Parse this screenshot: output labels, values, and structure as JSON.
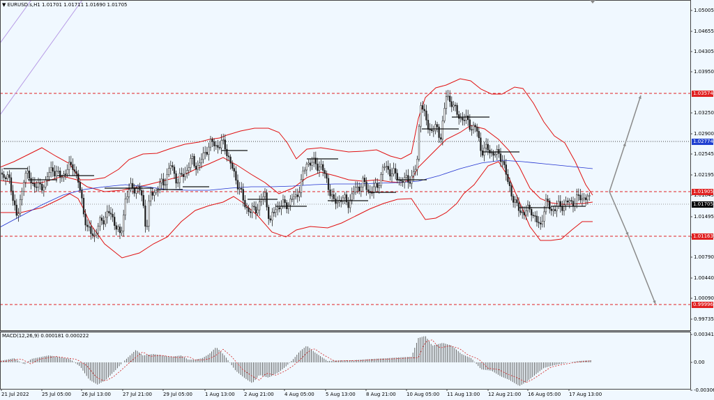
{
  "header": {
    "symbol_line": "EURUSD.s,H1  1.01701 1.01711 1.01690 1.01705",
    "macd_line": "MACD(12,26,9) 0.000181 0.000222"
  },
  "price_axis": {
    "ticks": [
      "1.05005",
      "1.04655",
      "1.04305",
      "1.03950",
      "1.03250",
      "1.02900",
      "1.02545",
      "1.02195",
      "1.01845",
      "1.01495",
      "1.01145",
      "1.00790",
      "1.00440",
      "1.00090",
      "0.99735"
    ],
    "badges": [
      {
        "text": "1.03574",
        "color": "#e02020"
      },
      {
        "text": "1.02774",
        "color": "#1f3fd0"
      },
      {
        "text": "1.01905",
        "color": "#e02020"
      },
      {
        "text": "1.01705",
        "color": "#000000"
      },
      {
        "text": "1.01163",
        "color": "#e02020"
      },
      {
        "text": "0.99996",
        "color": "#e02020"
      }
    ]
  },
  "macd_axis": {
    "ticks": [
      "0.003413",
      "0.00",
      "-0.003065"
    ]
  },
  "time_axis": {
    "ticks": [
      "21 Jul 2022",
      "25 Jul 05:00",
      "26 Jul 13:00",
      "27 Jul 21:00",
      "29 Jul 05:00",
      "1 Aug 13:00",
      "2 Aug 21:00",
      "4 Aug 05:00",
      "5 Aug 13:00",
      "8 Aug 21:00",
      "10 Aug 05:00",
      "11 Aug 13:00",
      "12 Aug 21:00",
      "16 Aug 05:00",
      "17 Aug 13:00"
    ]
  },
  "colors": {
    "background": "#f0f8ff",
    "bollinger": "#e01010",
    "moving_average": "#2030d0",
    "support_line": "#e02020",
    "dotted_level": "#444444",
    "candles": "#222222",
    "projection_arrows": "#8a8a8a",
    "macd_signal": "#d02020"
  }
}
